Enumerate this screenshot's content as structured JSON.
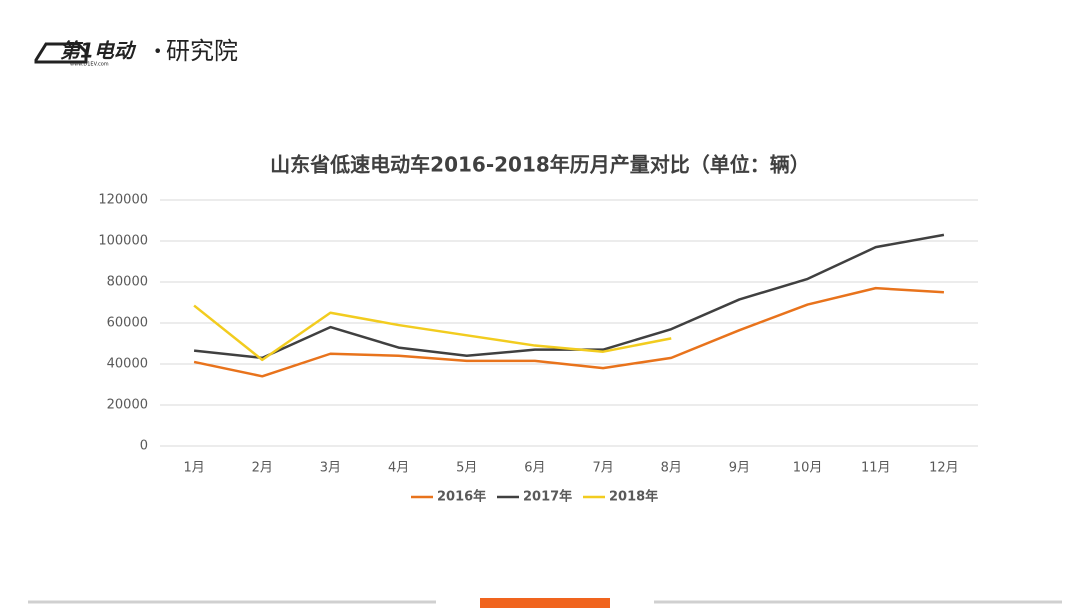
{
  "header": {
    "brand": "第1电动",
    "site": "www.D1EV.com",
    "dot": "•",
    "department": "研究院"
  },
  "chart_data": {
    "type": "line",
    "title": "山东省低速电动车2016-2018年历月产量对比（单位：辆）",
    "categories": [
      "1月",
      "2月",
      "3月",
      "4月",
      "5月",
      "6月",
      "7月",
      "8月",
      "9月",
      "10月",
      "11月",
      "12月"
    ],
    "series": [
      {
        "name": "2016年",
        "color": "#e8731c",
        "values": [
          41000,
          34000,
          45000,
          44000,
          41500,
          41500,
          38000,
          43000,
          56500,
          69000,
          77000,
          75000
        ]
      },
      {
        "name": "2017年",
        "color": "#404040",
        "values": [
          46500,
          43000,
          58000,
          48000,
          44000,
          47000,
          47000,
          57000,
          71500,
          81500,
          97000,
          103000
        ]
      },
      {
        "name": "2018年",
        "color": "#f2cc1f",
        "values": [
          68500,
          42000,
          65000,
          59000,
          54000,
          49000,
          46000,
          52500,
          null,
          null,
          null,
          null
        ]
      }
    ],
    "ylim": [
      0,
      120000
    ],
    "yticks": [
      0,
      20000,
      40000,
      60000,
      80000,
      100000,
      120000
    ],
    "grid": true,
    "legend": "bottom"
  }
}
